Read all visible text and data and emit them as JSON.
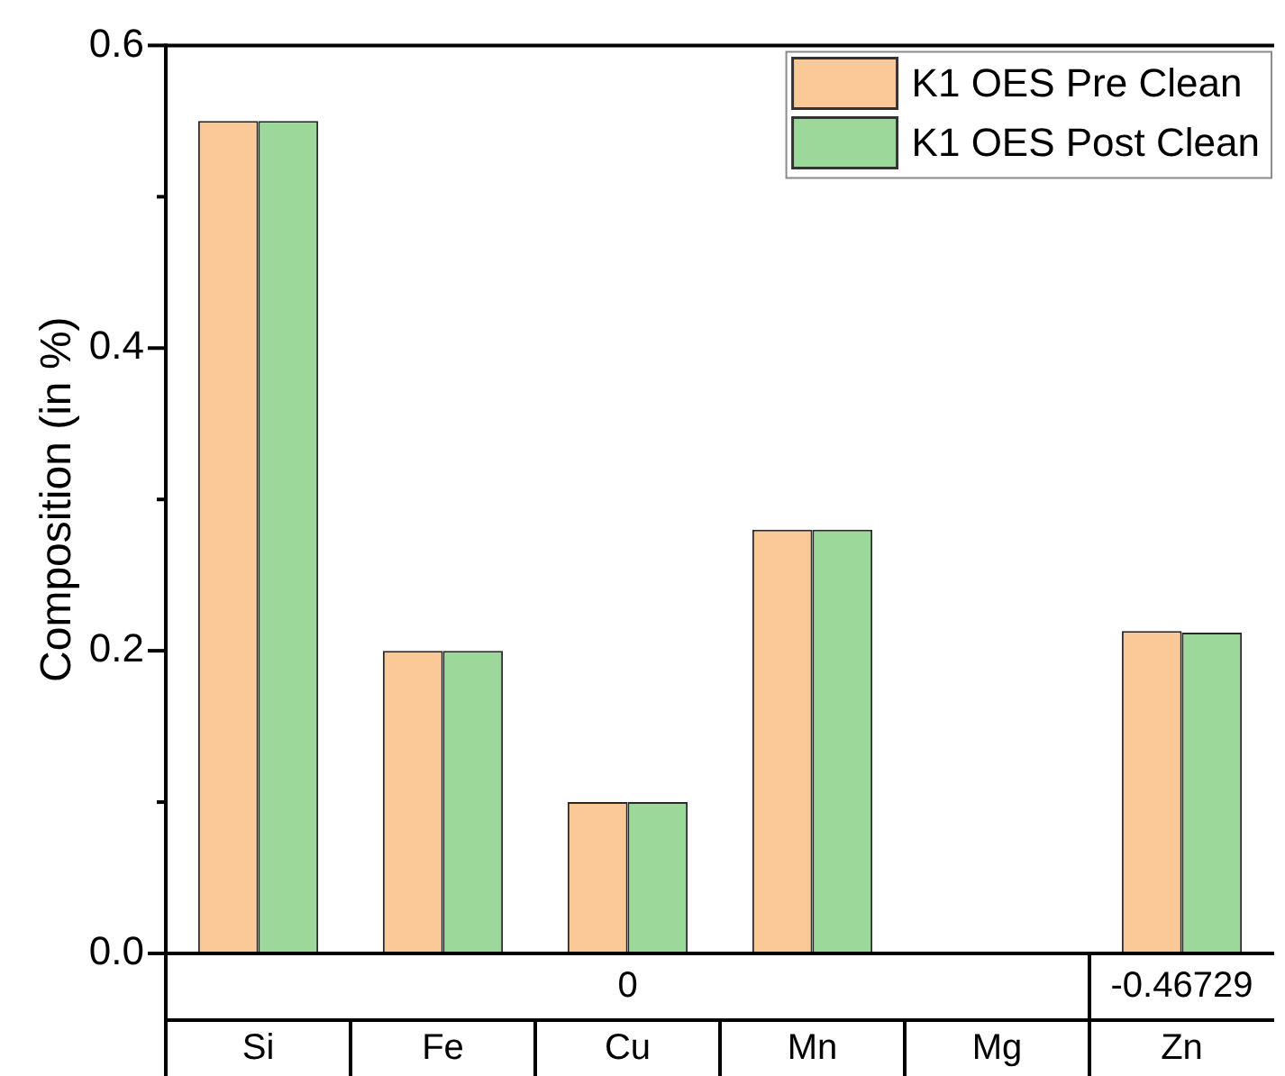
{
  "chart_data": {
    "type": "bar",
    "ylabel": "Composition (in %)",
    "categories": [
      "Si",
      "Fe",
      "Cu",
      "Mn",
      "Mg",
      "Zn"
    ],
    "series": [
      {
        "name": "K1 OES Pre Clean",
        "color": "#fbc898",
        "values": [
          0.55,
          0.2,
          0.1,
          0.28,
          0,
          0.213
        ]
      },
      {
        "name": "K1 OES Post Clean",
        "color": "#9dd89b",
        "values": [
          0.55,
          0.2,
          0.1,
          0.28,
          0,
          0.212
        ]
      }
    ],
    "ylim": [
      0,
      0.6
    ],
    "yticks": [
      {
        "value": 0,
        "label": "0.0"
      },
      {
        "value": 0.1,
        "label": null
      },
      0.2,
      {
        "value": 0.3,
        "label": null
      },
      0.4,
      {
        "value": 0.5,
        "label": null
      },
      0.6
    ],
    "legend": "top right",
    "annotations": [
      "0",
      "-0.46729"
    ]
  }
}
